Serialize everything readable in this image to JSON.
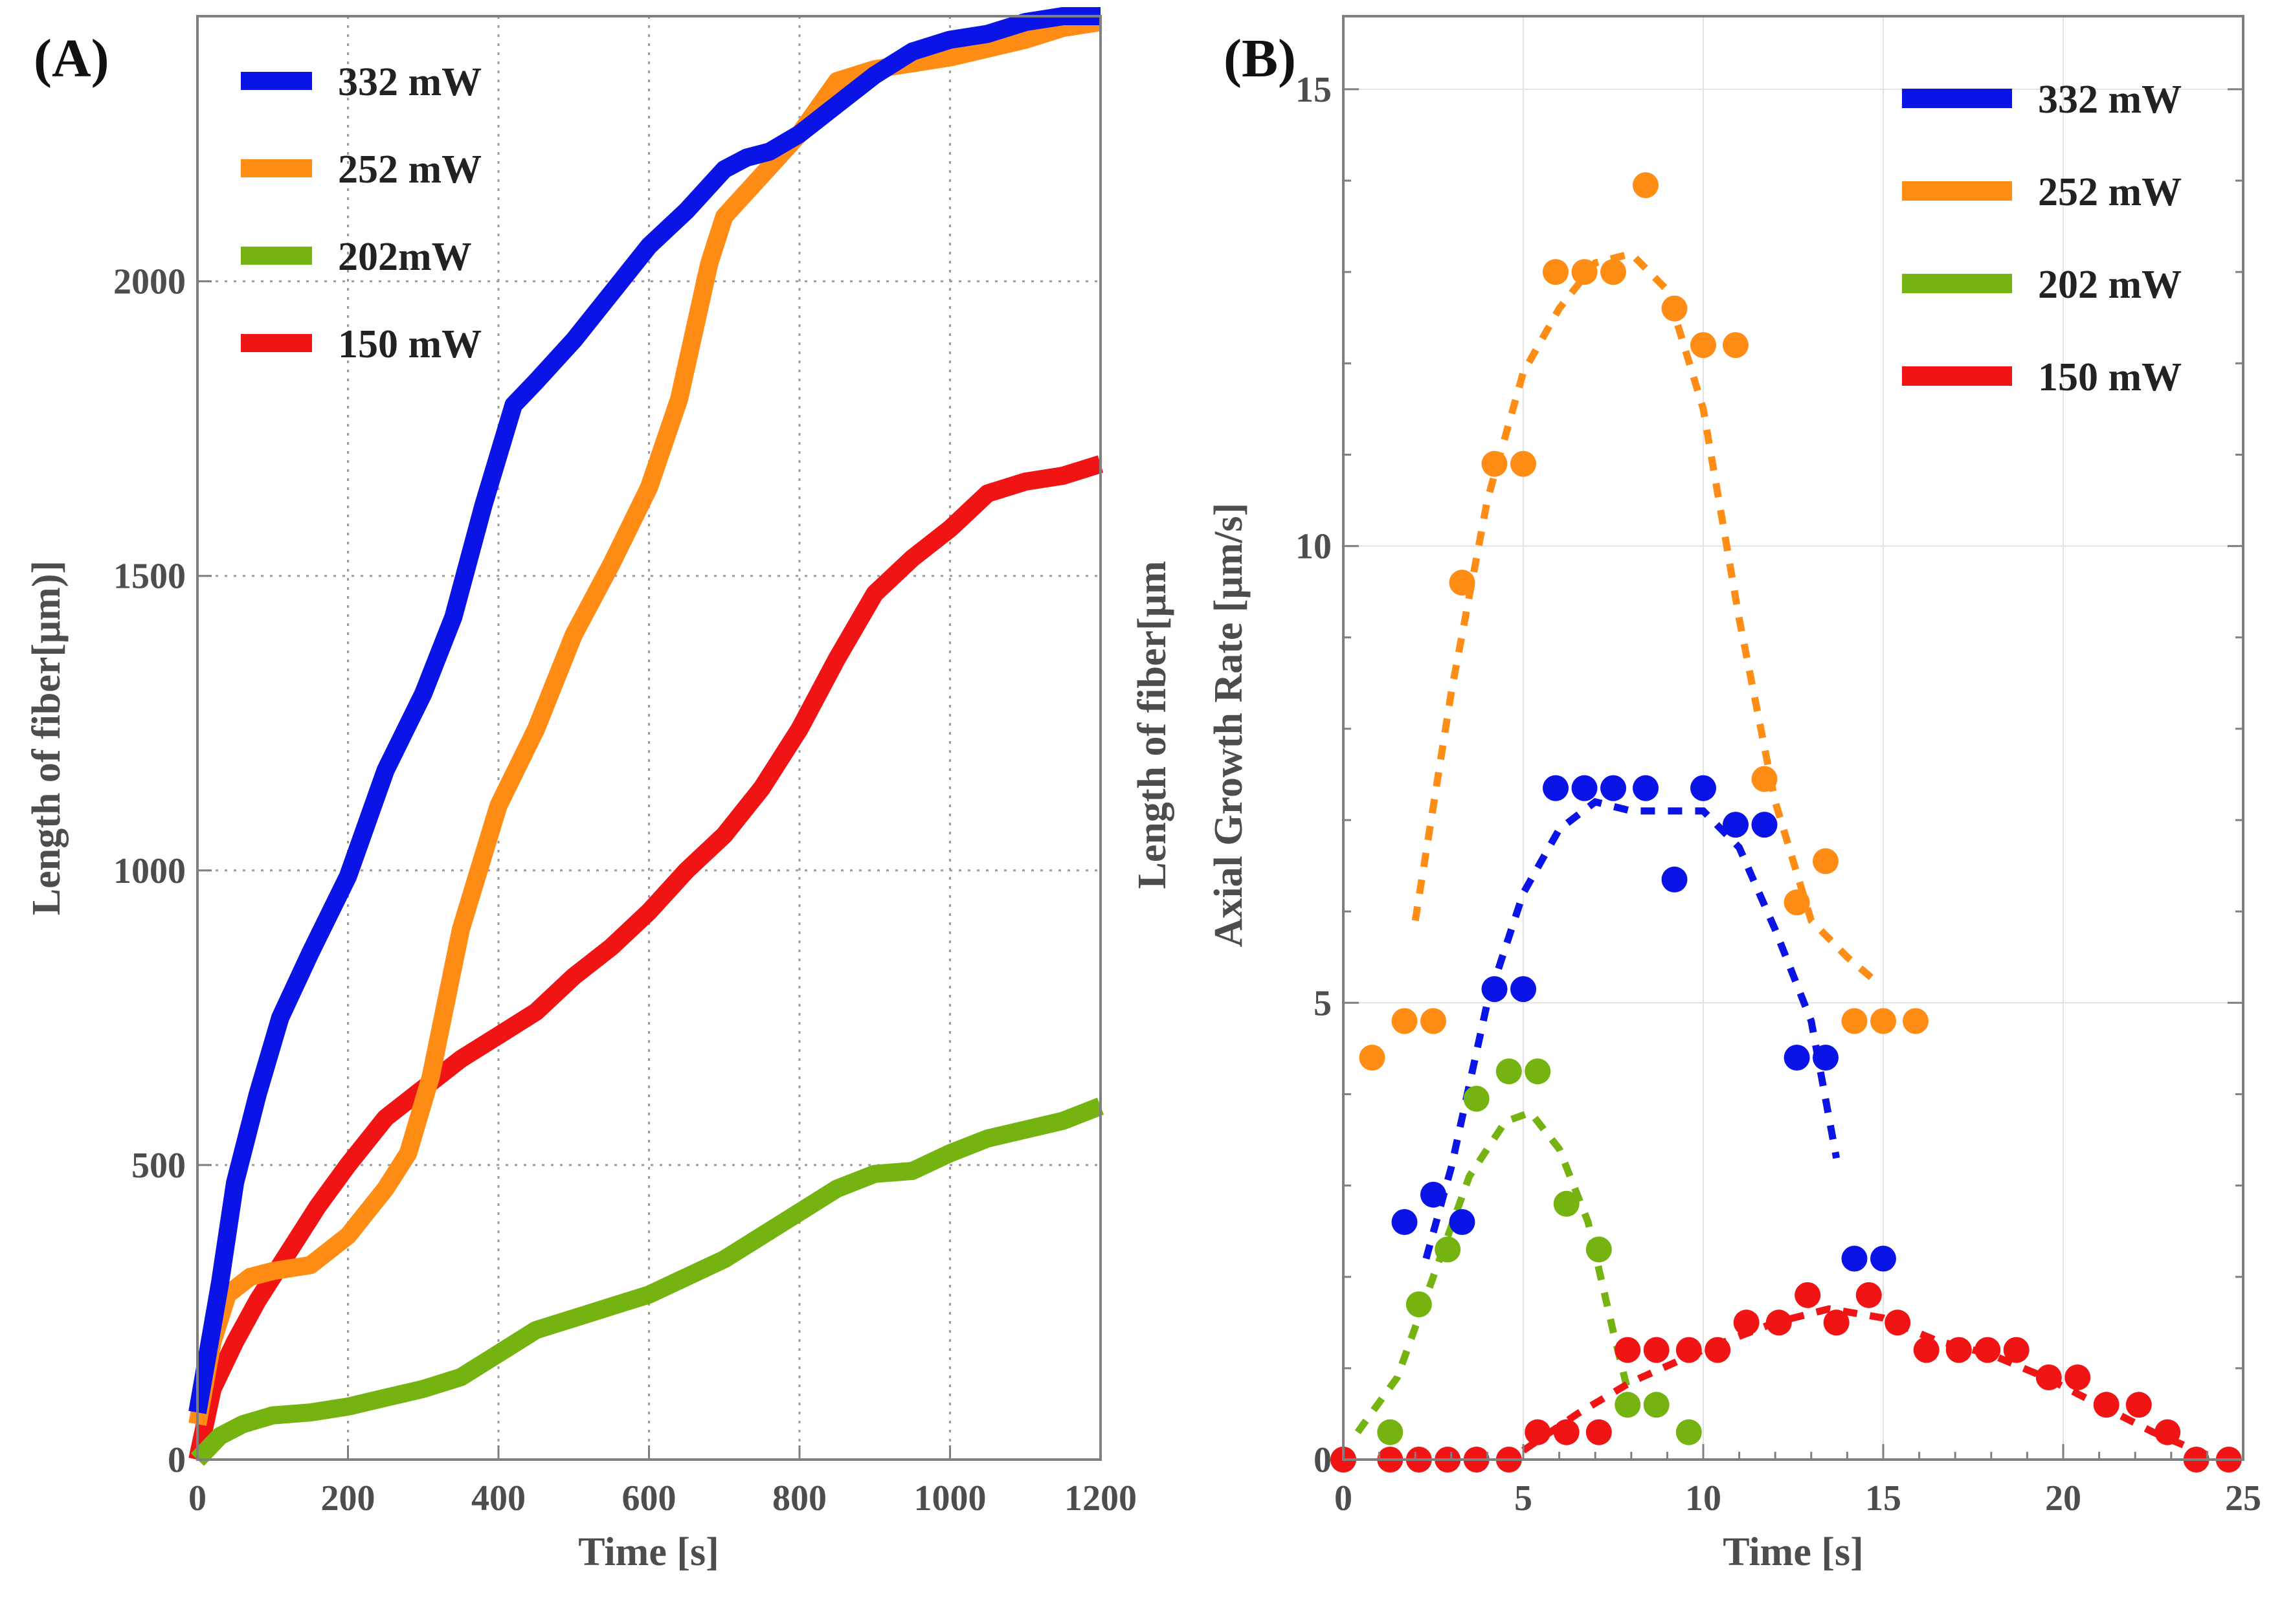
{
  "chart_data": [
    {
      "type": "line",
      "panel_label": "(A)",
      "xlabel": "Time [s]",
      "ylabel": "Length of fiber[μm)]",
      "xlim": [
        0,
        1200
      ],
      "ylim": [
        0,
        2450
      ],
      "xticks": [
        "0",
        "200",
        "400",
        "600",
        "800",
        "1000",
        "1200"
      ],
      "yticks": [
        "0",
        "500",
        "1000",
        "1500",
        "2000"
      ],
      "grid": true,
      "legend_position": "top-left",
      "series": [
        {
          "name": "332 mW",
          "color": "#0a14e6",
          "x": [
            0,
            30,
            50,
            80,
            110,
            150,
            200,
            250,
            300,
            340,
            380,
            420,
            450,
            500,
            550,
            600,
            650,
            700,
            730,
            760,
            800,
            850,
            900,
            950,
            1000,
            1050,
            1100,
            1150,
            1200
          ],
          "y": [
            80,
            300,
            470,
            620,
            750,
            860,
            990,
            1170,
            1300,
            1430,
            1620,
            1790,
            1830,
            1900,
            1980,
            2060,
            2120,
            2190,
            2210,
            2220,
            2250,
            2300,
            2350,
            2390,
            2410,
            2420,
            2440,
            2450,
            2450
          ]
        },
        {
          "name": "252 mW",
          "color": "#ff8c14",
          "x": [
            0,
            20,
            40,
            70,
            100,
            150,
            200,
            250,
            280,
            310,
            350,
            400,
            450,
            500,
            550,
            600,
            640,
            680,
            700,
            750,
            800,
            850,
            900,
            950,
            1000,
            1050,
            1100,
            1150,
            1200
          ],
          "y": [
            60,
            200,
            280,
            310,
            320,
            330,
            380,
            460,
            520,
            650,
            900,
            1110,
            1240,
            1400,
            1520,
            1650,
            1800,
            2030,
            2110,
            2180,
            2250,
            2340,
            2360,
            2370,
            2380,
            2395,
            2410,
            2430,
            2440
          ]
        },
        {
          "name": "202mW",
          "color": "#75b311",
          "x": [
            0,
            30,
            60,
            100,
            150,
            200,
            250,
            300,
            350,
            400,
            450,
            500,
            550,
            600,
            650,
            700,
            750,
            800,
            850,
            900,
            950,
            1000,
            1050,
            1100,
            1150,
            1200
          ],
          "y": [
            0,
            40,
            60,
            75,
            80,
            90,
            105,
            120,
            140,
            180,
            220,
            240,
            260,
            280,
            310,
            340,
            380,
            420,
            460,
            485,
            490,
            520,
            545,
            560,
            575,
            600
          ]
        },
        {
          "name": "150 mW",
          "color": "#f01414",
          "x": [
            0,
            20,
            50,
            80,
            120,
            160,
            200,
            250,
            300,
            350,
            400,
            450,
            500,
            550,
            600,
            650,
            700,
            750,
            800,
            850,
            900,
            950,
            1000,
            1050,
            1100,
            1150,
            1200
          ],
          "y": [
            0,
            120,
            200,
            270,
            350,
            430,
            500,
            580,
            630,
            680,
            720,
            760,
            820,
            870,
            930,
            1000,
            1060,
            1140,
            1240,
            1360,
            1470,
            1530,
            1580,
            1640,
            1660,
            1670,
            1690
          ]
        }
      ]
    },
    {
      "type": "scatter",
      "panel_label": "(B)",
      "xlabel": "Time [s]",
      "ylabel_line1": "Length of fiber[μm",
      "ylabel_line2": "Axial Growth Rate [μm/s]",
      "xlim": [
        0,
        25
      ],
      "ylim": [
        0,
        15.8
      ],
      "xticks": [
        "0",
        "5",
        "10",
        "15",
        "20",
        "25"
      ],
      "yticks": [
        "0",
        "5",
        "10",
        "15"
      ],
      "grid": true,
      "legend_position": "top-right",
      "series": [
        {
          "name": "332 mW",
          "color": "#0a14e6",
          "points": [
            [
              1.7,
              2.6
            ],
            [
              2.5,
              2.9
            ],
            [
              3.3,
              2.6
            ],
            [
              4.2,
              5.15
            ],
            [
              5.0,
              5.15
            ],
            [
              5.9,
              7.35
            ],
            [
              6.7,
              7.35
            ],
            [
              7.5,
              7.35
            ],
            [
              8.4,
              7.35
            ],
            [
              9.2,
              6.35
            ],
            [
              10.0,
              7.35
            ],
            [
              10.9,
              6.95
            ],
            [
              11.7,
              6.95
            ],
            [
              12.6,
              4.4
            ],
            [
              13.4,
              4.4
            ],
            [
              14.2,
              2.2
            ],
            [
              15.0,
              2.2
            ]
          ],
          "fit": [
            [
              2.3,
              2.2
            ],
            [
              3.0,
              3.2
            ],
            [
              4.0,
              5.0
            ],
            [
              5.0,
              6.2
            ],
            [
              6.0,
              6.9
            ],
            [
              7.0,
              7.2
            ],
            [
              8.0,
              7.1
            ],
            [
              9.0,
              7.1
            ],
            [
              10.0,
              7.1
            ],
            [
              11.0,
              6.7
            ],
            [
              12.0,
              5.8
            ],
            [
              13.0,
              4.8
            ],
            [
              13.7,
              3.3
            ]
          ]
        },
        {
          "name": "252 mW",
          "color": "#ff8c14",
          "points": [
            [
              0.8,
              4.4
            ],
            [
              1.7,
              4.8
            ],
            [
              2.5,
              4.8
            ],
            [
              3.3,
              9.6
            ],
            [
              4.2,
              10.9
            ],
            [
              5.0,
              10.9
            ],
            [
              5.9,
              13.0
            ],
            [
              6.7,
              13.0
            ],
            [
              7.5,
              13.0
            ],
            [
              8.4,
              13.95
            ],
            [
              9.2,
              12.6
            ],
            [
              10.0,
              12.2
            ],
            [
              10.9,
              12.2
            ],
            [
              11.7,
              7.45
            ],
            [
              12.6,
              6.1
            ],
            [
              13.4,
              6.55
            ],
            [
              14.2,
              4.8
            ],
            [
              15.0,
              4.8
            ],
            [
              15.9,
              4.8
            ]
          ],
          "fit": [
            [
              2.0,
              5.9
            ],
            [
              3.0,
              8.4
            ],
            [
              4.0,
              10.5
            ],
            [
              5.0,
              11.9
            ],
            [
              6.0,
              12.6
            ],
            [
              7.0,
              13.1
            ],
            [
              8.0,
              13.2
            ],
            [
              9.0,
              12.8
            ],
            [
              10.0,
              11.5
            ],
            [
              11.0,
              9.2
            ],
            [
              12.0,
              7.2
            ],
            [
              13.0,
              5.9
            ],
            [
              14.0,
              5.5
            ],
            [
              14.9,
              5.2
            ]
          ]
        },
        {
          "name": "202 mW",
          "color": "#75b311",
          "points": [
            [
              0.0,
              0.0
            ],
            [
              1.3,
              0.3
            ],
            [
              2.1,
              1.7
            ],
            [
              2.9,
              2.3
            ],
            [
              3.7,
              3.95
            ],
            [
              4.6,
              4.25
            ],
            [
              5.4,
              4.25
            ],
            [
              6.2,
              2.8
            ],
            [
              7.1,
              2.3
            ],
            [
              7.9,
              0.6
            ],
            [
              8.7,
              0.6
            ],
            [
              9.6,
              0.3
            ]
          ],
          "fit": [
            [
              0.4,
              0.3
            ],
            [
              1.5,
              0.9
            ],
            [
              2.5,
              2.0
            ],
            [
              3.5,
              3.1
            ],
            [
              4.5,
              3.7
            ],
            [
              5.2,
              3.8
            ],
            [
              6.0,
              3.4
            ],
            [
              6.8,
              2.6
            ],
            [
              7.5,
              1.4
            ],
            [
              8.0,
              0.6
            ]
          ]
        },
        {
          "name": "150 mW",
          "color": "#f01414",
          "points": [
            [
              0.0,
              0.0
            ],
            [
              1.3,
              0.0
            ],
            [
              2.1,
              0.0
            ],
            [
              2.9,
              0.0
            ],
            [
              3.7,
              0.0
            ],
            [
              4.6,
              0.0
            ],
            [
              5.4,
              0.3
            ],
            [
              6.2,
              0.3
            ],
            [
              7.1,
              0.3
            ],
            [
              7.9,
              1.2
            ],
            [
              8.7,
              1.2
            ],
            [
              9.6,
              1.2
            ],
            [
              10.4,
              1.2
            ],
            [
              11.2,
              1.5
            ],
            [
              12.1,
              1.5
            ],
            [
              12.9,
              1.8
            ],
            [
              13.7,
              1.5
            ],
            [
              14.6,
              1.8
            ],
            [
              15.4,
              1.5
            ],
            [
              16.2,
              1.2
            ],
            [
              17.1,
              1.2
            ],
            [
              17.9,
              1.2
            ],
            [
              18.7,
              1.2
            ],
            [
              19.6,
              0.9
            ],
            [
              20.4,
              0.9
            ],
            [
              21.2,
              0.6
            ],
            [
              22.1,
              0.6
            ],
            [
              22.9,
              0.3
            ],
            [
              23.7,
              0.0
            ],
            [
              24.6,
              0.0
            ]
          ],
          "fit": [
            [
              5.0,
              0.1
            ],
            [
              6.5,
              0.5
            ],
            [
              8.0,
              0.85
            ],
            [
              10.0,
              1.2
            ],
            [
              12.0,
              1.5
            ],
            [
              13.5,
              1.65
            ],
            [
              15.0,
              1.55
            ],
            [
              16.5,
              1.3
            ],
            [
              18.0,
              1.15
            ],
            [
              19.5,
              0.9
            ],
            [
              21.0,
              0.6
            ],
            [
              22.5,
              0.3
            ],
            [
              24.0,
              0.05
            ]
          ]
        }
      ]
    }
  ]
}
